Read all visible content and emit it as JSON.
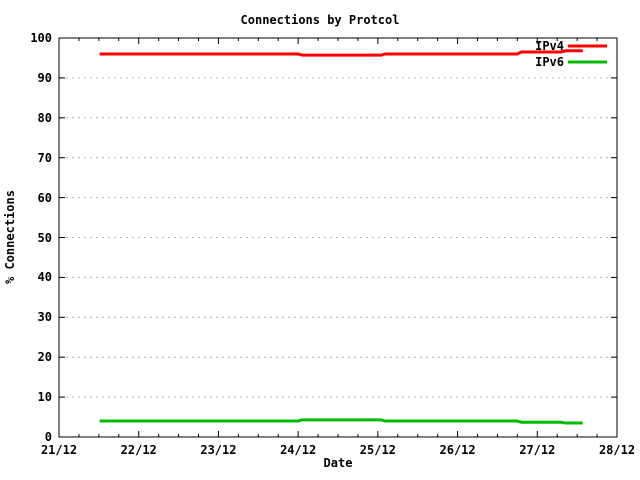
{
  "chart_data": {
    "type": "line",
    "title": "Connections by Protcol",
    "xlabel": "Date",
    "ylabel": "% Connections",
    "x_tick_labels": [
      "21/12",
      "22/12",
      "23/12",
      "24/12",
      "25/12",
      "26/12",
      "27/12",
      "28/12"
    ],
    "x_minor_ticks_between_majors": 3,
    "y_tick_labels": [
      "0",
      "10",
      "20",
      "30",
      "40",
      "50",
      "60",
      "70",
      "80",
      "90",
      "100"
    ],
    "ylim": [
      0,
      100
    ],
    "x_range_days": [
      0,
      7
    ],
    "grid": {
      "horizontal": true,
      "vertical": false,
      "style": "dashed",
      "color": "#b4b4b4"
    },
    "axis_color": "#000000",
    "background_color": "#ffffff",
    "legend": {
      "position": "top-right-inside",
      "entries": [
        {
          "label": "IPv4",
          "color": "#ff0000"
        },
        {
          "label": "IPv6",
          "color": "#00bb00"
        }
      ]
    },
    "series": [
      {
        "name": "IPv4",
        "color": "#ff0000",
        "unit": "%",
        "points_day_value": [
          [
            0.51,
            96.0
          ],
          [
            3.0,
            96.0
          ],
          [
            3.05,
            95.7
          ],
          [
            4.04,
            95.7
          ],
          [
            4.09,
            96.0
          ],
          [
            5.75,
            96.0
          ],
          [
            5.8,
            96.5
          ],
          [
            6.3,
            96.5
          ],
          [
            6.35,
            96.8
          ],
          [
            6.57,
            96.8
          ]
        ]
      },
      {
        "name": "IPv6",
        "color": "#00bb00",
        "unit": "%",
        "points_day_value": [
          [
            0.51,
            4.0
          ],
          [
            3.0,
            4.0
          ],
          [
            3.05,
            4.3
          ],
          [
            4.04,
            4.3
          ],
          [
            4.09,
            4.0
          ],
          [
            5.75,
            4.0
          ],
          [
            5.8,
            3.7
          ],
          [
            6.3,
            3.7
          ],
          [
            6.35,
            3.5
          ],
          [
            6.57,
            3.5
          ]
        ]
      }
    ]
  }
}
